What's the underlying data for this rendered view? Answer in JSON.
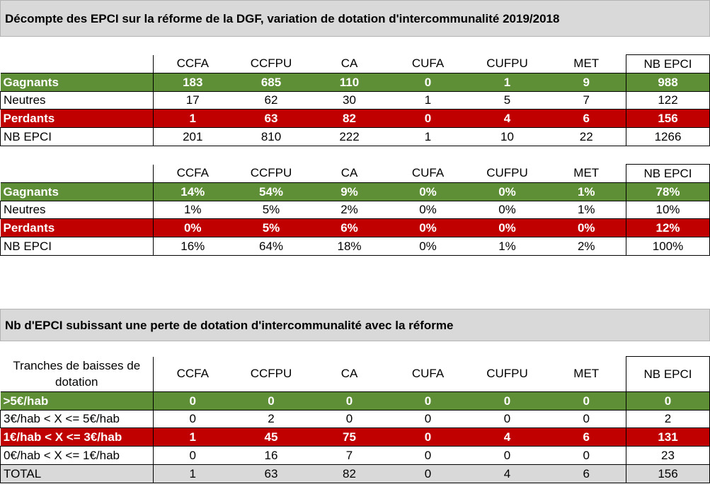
{
  "title1": "Décompte des EPCI sur la réforme de la DGF, variation de dotation d'intercommunalité 2019/2018",
  "title2": "Nb d'EPCI subissant une perte de dotation d'intercommunalité avec la réforme",
  "columns": [
    "CCFA",
    "CCFPU",
    "CA",
    "CUFA",
    "CUFPU",
    "MET",
    "NB EPCI"
  ],
  "table1": {
    "rows": [
      {
        "label": "Gagnants",
        "values": [
          "183",
          "685",
          "110",
          "0",
          "1",
          "9",
          "988"
        ]
      },
      {
        "label": "Neutres",
        "values": [
          "17",
          "62",
          "30",
          "1",
          "5",
          "7",
          "122"
        ]
      },
      {
        "label": "Perdants",
        "values": [
          "1",
          "63",
          "82",
          "0",
          "4",
          "6",
          "156"
        ]
      },
      {
        "label": "NB EPCI",
        "values": [
          "201",
          "810",
          "222",
          "1",
          "10",
          "22",
          "1266"
        ]
      }
    ]
  },
  "table2": {
    "rows": [
      {
        "label": "Gagnants",
        "values": [
          "14%",
          "54%",
          "9%",
          "0%",
          "0%",
          "1%",
          "78%"
        ]
      },
      {
        "label": "Neutres",
        "values": [
          "1%",
          "5%",
          "2%",
          "0%",
          "0%",
          "1%",
          "10%"
        ]
      },
      {
        "label": "Perdants",
        "values": [
          "0%",
          "5%",
          "6%",
          "0%",
          "0%",
          "0%",
          "12%"
        ]
      },
      {
        "label": "NB EPCI",
        "values": [
          "16%",
          "64%",
          "18%",
          "0%",
          "1%",
          "2%",
          "100%"
        ]
      }
    ]
  },
  "table3": {
    "header_label": "Tranches de baisses de dotation",
    "rows": [
      {
        "label": ">5€/hab",
        "values": [
          "0",
          "0",
          "0",
          "0",
          "0",
          "0",
          "0"
        ]
      },
      {
        "label": "3€/hab < X <= 5€/hab",
        "values": [
          "0",
          "2",
          "0",
          "0",
          "0",
          "0",
          "2"
        ]
      },
      {
        "label": "1€/hab < X <= 3€/hab",
        "values": [
          "1",
          "45",
          "75",
          "0",
          "4",
          "6",
          "131"
        ]
      },
      {
        "label": "0€/hab < X <= 1€/hab",
        "values": [
          "0",
          "16",
          "7",
          "0",
          "0",
          "0",
          "23"
        ]
      },
      {
        "label": "TOTAL",
        "values": [
          "1",
          "63",
          "82",
          "0",
          "4",
          "6",
          "156"
        ]
      }
    ]
  },
  "colors": {
    "green": "#5e8f37",
    "red": "#c00000",
    "gray": "#d9d9d9"
  }
}
